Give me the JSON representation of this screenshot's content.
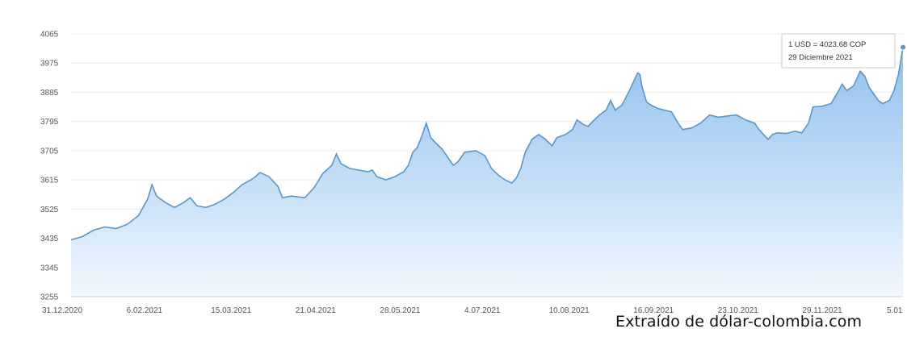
{
  "chart_data": {
    "type": "area",
    "y_ticks": [
      "4065",
      "3975",
      "3885",
      "3795",
      "3705",
      "3615",
      "3525",
      "3435",
      "3345",
      "3255"
    ],
    "ylim": [
      3255,
      4065
    ],
    "x_labels": [
      "31.12.2020",
      "6.02.2021",
      "15.03.2021",
      "21.04.2021",
      "28.05.2021",
      "4.07.2021",
      "10.08.2021",
      "16.09.2021",
      "23.10.2021",
      "29.11.2021",
      "5.01"
    ],
    "points": [
      {
        "x": 0,
        "y": 3430
      },
      {
        "x": 5,
        "y": 3440
      },
      {
        "x": 10,
        "y": 3460
      },
      {
        "x": 15,
        "y": 3470
      },
      {
        "x": 20,
        "y": 3465
      },
      {
        "x": 25,
        "y": 3478
      },
      {
        "x": 30,
        "y": 3505
      },
      {
        "x": 34,
        "y": 3555
      },
      {
        "x": 36,
        "y": 3600
      },
      {
        "x": 38,
        "y": 3565
      },
      {
        "x": 42,
        "y": 3545
      },
      {
        "x": 46,
        "y": 3530
      },
      {
        "x": 50,
        "y": 3545
      },
      {
        "x": 53,
        "y": 3560
      },
      {
        "x": 56,
        "y": 3535
      },
      {
        "x": 60,
        "y": 3530
      },
      {
        "x": 64,
        "y": 3540
      },
      {
        "x": 68,
        "y": 3555
      },
      {
        "x": 72,
        "y": 3575
      },
      {
        "x": 76,
        "y": 3600
      },
      {
        "x": 80,
        "y": 3615
      },
      {
        "x": 82,
        "y": 3625
      },
      {
        "x": 84,
        "y": 3638
      },
      {
        "x": 88,
        "y": 3625
      },
      {
        "x": 92,
        "y": 3595
      },
      {
        "x": 94,
        "y": 3560
      },
      {
        "x": 98,
        "y": 3565
      },
      {
        "x": 104,
        "y": 3560
      },
      {
        "x": 108,
        "y": 3590
      },
      {
        "x": 112,
        "y": 3635
      },
      {
        "x": 116,
        "y": 3660
      },
      {
        "x": 118,
        "y": 3695
      },
      {
        "x": 120,
        "y": 3665
      },
      {
        "x": 124,
        "y": 3650
      },
      {
        "x": 128,
        "y": 3645
      },
      {
        "x": 132,
        "y": 3640
      },
      {
        "x": 134,
        "y": 3645
      },
      {
        "x": 136,
        "y": 3625
      },
      {
        "x": 140,
        "y": 3615
      },
      {
        "x": 144,
        "y": 3625
      },
      {
        "x": 148,
        "y": 3640
      },
      {
        "x": 150,
        "y": 3660
      },
      {
        "x": 152,
        "y": 3700
      },
      {
        "x": 154,
        "y": 3715
      },
      {
        "x": 156,
        "y": 3750
      },
      {
        "x": 158,
        "y": 3790
      },
      {
        "x": 160,
        "y": 3745
      },
      {
        "x": 162,
        "y": 3730
      },
      {
        "x": 165,
        "y": 3710
      },
      {
        "x": 168,
        "y": 3680
      },
      {
        "x": 170,
        "y": 3660
      },
      {
        "x": 172,
        "y": 3670
      },
      {
        "x": 175,
        "y": 3700
      },
      {
        "x": 180,
        "y": 3705
      },
      {
        "x": 184,
        "y": 3690
      },
      {
        "x": 187,
        "y": 3650
      },
      {
        "x": 190,
        "y": 3630
      },
      {
        "x": 193,
        "y": 3615
      },
      {
        "x": 196,
        "y": 3605
      },
      {
        "x": 198,
        "y": 3620
      },
      {
        "x": 200,
        "y": 3650
      },
      {
        "x": 202,
        "y": 3700
      },
      {
        "x": 205,
        "y": 3740
      },
      {
        "x": 208,
        "y": 3755
      },
      {
        "x": 211,
        "y": 3740
      },
      {
        "x": 214,
        "y": 3720
      },
      {
        "x": 216,
        "y": 3745
      },
      {
        "x": 220,
        "y": 3755
      },
      {
        "x": 223,
        "y": 3770
      },
      {
        "x": 225,
        "y": 3800
      },
      {
        "x": 228,
        "y": 3785
      },
      {
        "x": 230,
        "y": 3780
      },
      {
        "x": 232,
        "y": 3795
      },
      {
        "x": 235,
        "y": 3815
      },
      {
        "x": 238,
        "y": 3830
      },
      {
        "x": 240,
        "y": 3860
      },
      {
        "x": 242,
        "y": 3830
      },
      {
        "x": 245,
        "y": 3845
      },
      {
        "x": 248,
        "y": 3885
      },
      {
        "x": 250,
        "y": 3915
      },
      {
        "x": 252,
        "y": 3945
      },
      {
        "x": 253,
        "y": 3940
      },
      {
        "x": 254,
        "y": 3900
      },
      {
        "x": 256,
        "y": 3855
      },
      {
        "x": 258,
        "y": 3845
      },
      {
        "x": 261,
        "y": 3835
      },
      {
        "x": 264,
        "y": 3830
      },
      {
        "x": 267,
        "y": 3825
      },
      {
        "x": 270,
        "y": 3790
      },
      {
        "x": 272,
        "y": 3770
      },
      {
        "x": 276,
        "y": 3775
      },
      {
        "x": 280,
        "y": 3790
      },
      {
        "x": 284,
        "y": 3815
      },
      {
        "x": 288,
        "y": 3808
      },
      {
        "x": 292,
        "y": 3812
      },
      {
        "x": 296,
        "y": 3815
      },
      {
        "x": 300,
        "y": 3800
      },
      {
        "x": 304,
        "y": 3790
      },
      {
        "x": 306,
        "y": 3770
      },
      {
        "x": 308,
        "y": 3755
      },
      {
        "x": 310,
        "y": 3740
      },
      {
        "x": 312,
        "y": 3755
      },
      {
        "x": 314,
        "y": 3760
      },
      {
        "x": 318,
        "y": 3758
      },
      {
        "x": 322,
        "y": 3765
      },
      {
        "x": 325,
        "y": 3760
      },
      {
        "x": 328,
        "y": 3790
      },
      {
        "x": 330,
        "y": 3840
      },
      {
        "x": 334,
        "y": 3842
      },
      {
        "x": 338,
        "y": 3850
      },
      {
        "x": 341,
        "y": 3885
      },
      {
        "x": 343,
        "y": 3910
      },
      {
        "x": 345,
        "y": 3890
      },
      {
        "x": 348,
        "y": 3905
      },
      {
        "x": 351,
        "y": 3950
      },
      {
        "x": 353,
        "y": 3935
      },
      {
        "x": 355,
        "y": 3900
      },
      {
        "x": 357,
        "y": 3880
      },
      {
        "x": 359,
        "y": 3860
      },
      {
        "x": 361,
        "y": 3850
      },
      {
        "x": 364,
        "y": 3860
      },
      {
        "x": 366,
        "y": 3890
      },
      {
        "x": 368,
        "y": 3940
      },
      {
        "x": 370,
        "y": 4023.68
      }
    ],
    "x_span": [
      0,
      370
    ],
    "grid": true,
    "line_color": "#5b97c6",
    "fill_top": "#8fc0ee",
    "fill_bottom": "#f2f8fe",
    "tooltip": {
      "line1": "1 USD = 4023.68 COP",
      "line2": "29 Diciembre 2021"
    }
  },
  "caption": "Extraído de dólar-colombia.com"
}
